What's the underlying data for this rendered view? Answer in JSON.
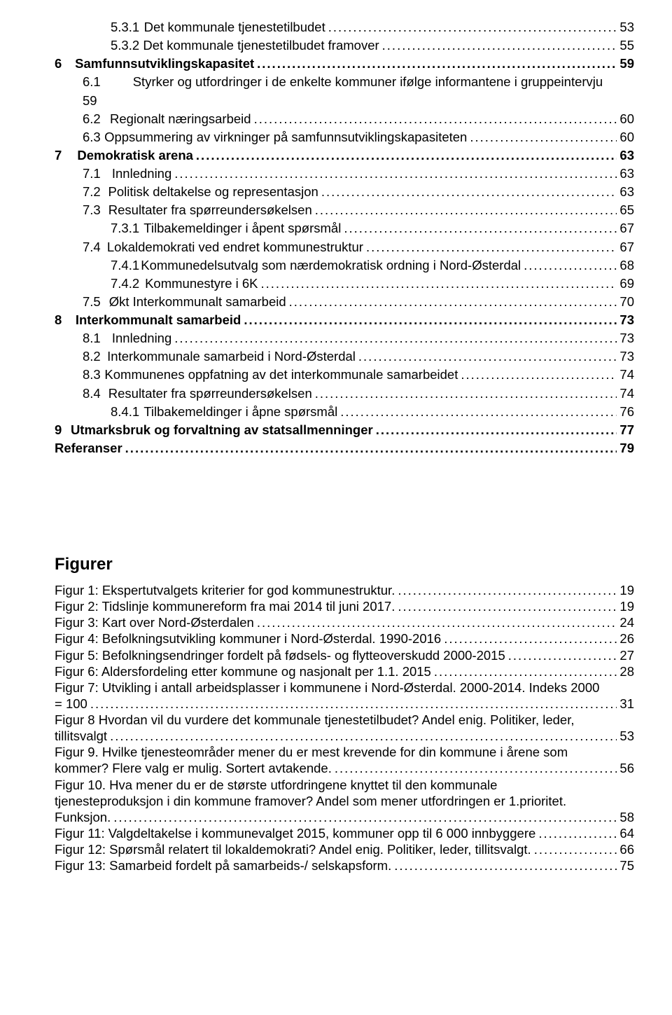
{
  "toc": [
    {
      "level": 2,
      "num": "5.3.1",
      "gap": "num-gap-3",
      "title": "Det kommunale tjenestetilbudet",
      "page": "53",
      "bold": false
    },
    {
      "level": 2,
      "num": "5.3.2",
      "gap": "num-gap-3",
      "title": "Det kommunale tjenestetilbudet framover",
      "page": "55",
      "bold": false
    },
    {
      "level": 0,
      "num": "6",
      "gap": "num-gap-1",
      "title": "Samfunnsutviklingskapasitet",
      "page": "59",
      "bold": true
    },
    {
      "level": 1,
      "num": "6.1",
      "gap": "num-gap-2",
      "title": "Styrker og utfordringer i de enkelte kommuner ifølge informantene i gruppeintervju",
      "page": "",
      "bold": false,
      "wrapSecond": "59"
    },
    {
      "level": 1,
      "num": "6.2",
      "gap": "num-gap-2",
      "title": "Regionalt næringsarbeid",
      "page": "60",
      "bold": false
    },
    {
      "level": 1,
      "num": "6.3",
      "gap": "num-gap-2",
      "title": "Oppsummering av virkninger på samfunnsutviklingskapasiteten",
      "page": "60",
      "bold": false
    },
    {
      "level": 0,
      "num": "7",
      "gap": "num-gap-1",
      "title": "Demokratisk arena",
      "page": "63",
      "bold": true
    },
    {
      "level": 1,
      "num": "7.1",
      "gap": "num-gap-2",
      "title": "Innledning",
      "page": "63",
      "bold": false
    },
    {
      "level": 1,
      "num": "7.2",
      "gap": "num-gap-2",
      "title": "Politisk deltakelse og representasjon",
      "page": "63",
      "bold": false
    },
    {
      "level": 1,
      "num": "7.3",
      "gap": "num-gap-2",
      "title": "Resultater fra spørreundersøkelsen",
      "page": "65",
      "bold": false
    },
    {
      "level": 2,
      "num": "7.3.1",
      "gap": "num-gap-3",
      "title": "Tilbakemeldinger i åpent spørsmål",
      "page": "67",
      "bold": false
    },
    {
      "level": 1,
      "num": "7.4",
      "gap": "num-gap-2",
      "title": "Lokaldemokrati ved endret kommunestruktur",
      "page": "67",
      "bold": false
    },
    {
      "level": 2,
      "num": "7.4.1",
      "gap": "num-gap-3",
      "title": "Kommunedelsutvalg som nærdemokratisk ordning i Nord-Østerdal",
      "page": "68",
      "bold": false
    },
    {
      "level": 2,
      "num": "7.4.2",
      "gap": "num-gap-3",
      "title": "Kommunestyre i 6K",
      "page": "69",
      "bold": false
    },
    {
      "level": 1,
      "num": "7.5",
      "gap": "num-gap-2",
      "title": "Økt Interkommunalt samarbeid",
      "page": "70",
      "bold": false
    },
    {
      "level": 0,
      "num": "8",
      "gap": "num-gap-1",
      "title": "Interkommunalt samarbeid",
      "page": "73",
      "bold": true
    },
    {
      "level": 1,
      "num": "8.1",
      "gap": "num-gap-2",
      "title": "Innledning",
      "page": "73",
      "bold": false
    },
    {
      "level": 1,
      "num": "8.2",
      "gap": "num-gap-2",
      "title": "Interkommunale samarbeid i Nord-Østerdal",
      "page": "73",
      "bold": false
    },
    {
      "level": 1,
      "num": "8.3",
      "gap": "num-gap-2",
      "title": "Kommunenes oppfatning av det interkommunale samarbeidet",
      "page": "74",
      "bold": false
    },
    {
      "level": 1,
      "num": "8.4",
      "gap": "num-gap-2",
      "title": "Resultater fra spørreundersøkelsen",
      "page": "74",
      "bold": false
    },
    {
      "level": 2,
      "num": "8.4.1",
      "gap": "num-gap-3",
      "title": "Tilbakemeldinger i åpne spørsmål",
      "page": "76",
      "bold": false
    },
    {
      "level": 0,
      "num": "9",
      "gap": "num-gap-1",
      "title": "Utmarksbruk og forvaltning av statsallmenninger",
      "page": "77",
      "bold": true
    },
    {
      "level": 0,
      "num": "",
      "gap": "",
      "title": "Referanser",
      "page": "79",
      "bold": true,
      "noNum": true
    }
  ],
  "figHeading": "Figurer",
  "figures": [
    {
      "lines": [
        "Figur 1: Ekspertutvalgets kriterier for god kommunestruktur."
      ],
      "page": "19"
    },
    {
      "lines": [
        "Figur 2: Tidslinje kommunereform fra mai 2014 til juni 2017."
      ],
      "page": "19"
    },
    {
      "lines": [
        "Figur 3: Kart over Nord-Østerdalen"
      ],
      "page": "24"
    },
    {
      "lines": [
        "Figur 4: Befolkningsutvikling kommuner i Nord-Østerdal. 1990-2016"
      ],
      "page": "26"
    },
    {
      "lines": [
        "Figur 5: Befolkningsendringer fordelt på fødsels- og flytteoverskudd 2000-2015"
      ],
      "page": "27"
    },
    {
      "lines": [
        "Figur 6: Aldersfordeling etter kommune og nasjonalt per 1.1. 2015"
      ],
      "page": "28"
    },
    {
      "lines": [
        "Figur 7: Utvikling i antall arbeidsplasser i kommunene i Nord-Østerdal. 2000-2014. Indeks 2000",
        "= 100"
      ],
      "page": "31"
    },
    {
      "lines": [
        "Figur 8 Hvordan vil du vurdere det kommunale tjenestetilbudet? Andel enig. Politiker, leder,",
        "tillitsvalgt"
      ],
      "page": "53"
    },
    {
      "lines": [
        "Figur 9. Hvilke tjenesteområder mener du er mest krevende for din kommune i årene som",
        "kommer? Flere valg er mulig. Sortert avtakende."
      ],
      "page": "56"
    },
    {
      "lines": [
        "Figur 10. Hva mener du er de største utfordringene knyttet til den kommunale",
        "tjenesteproduksjon i din kommune framover? Andel som mener utfordringen er 1.prioritet.",
        "Funksjon."
      ],
      "page": "58"
    },
    {
      "lines": [
        "Figur 11: Valgdeltakelse i kommunevalget 2015, kommuner opp til 6 000 innbyggere"
      ],
      "page": "64"
    },
    {
      "lines": [
        "Figur 12: Spørsmål relatert til lokaldemokrati? Andel enig. Politiker, leder, tillitsvalgt."
      ],
      "page": "66"
    },
    {
      "lines": [
        "Figur 13: Samarbeid fordelt på samarbeids-/ selskapsform."
      ],
      "page": "75"
    }
  ]
}
